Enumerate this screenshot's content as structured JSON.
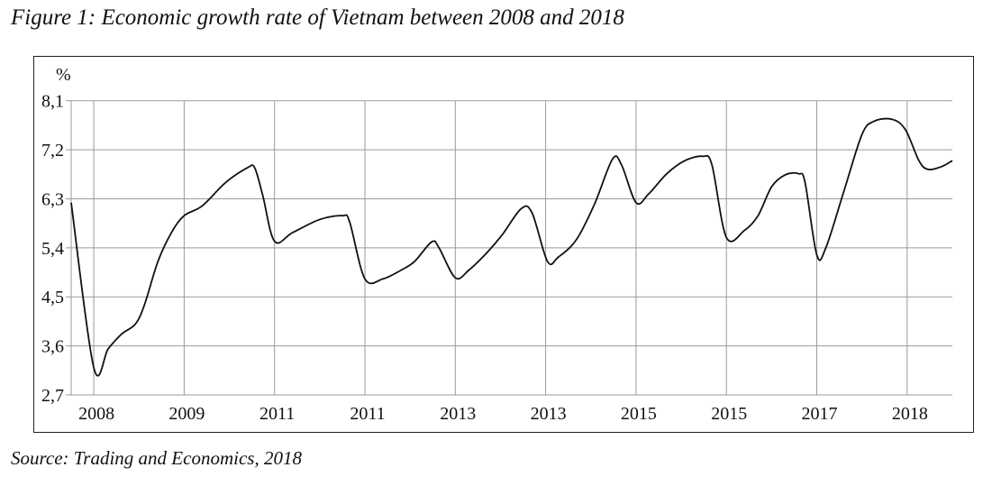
{
  "title": "Figure 1: Economic growth rate of Vietnam between 2008 and 2018",
  "source": "Source: Trading and Economics, 2018",
  "chart_data": {
    "type": "line",
    "title": "Figure 1: Economic growth rate of Vietnam between 2008 and 2018",
    "ylabel": "%",
    "xlabel": "",
    "x_tick_labels": [
      "2008",
      "2009",
      "2011",
      "2011",
      "2013",
      "2013",
      "2015",
      "2015",
      "2017",
      "2018"
    ],
    "x_tick_index": [
      0,
      1,
      2,
      3,
      4,
      5,
      6,
      7,
      8,
      9
    ],
    "xlim": [
      -0.25,
      9.5
    ],
    "y_ticks": [
      "2,7",
      "3,6",
      "4,5",
      "5,4",
      "6,3",
      "7,2",
      "8,1"
    ],
    "y_tick_values": [
      2.7,
      3.6,
      4.5,
      5.4,
      6.3,
      7.2,
      8.1
    ],
    "ylim": [
      2.7,
      8.1
    ],
    "grid": true,
    "line_color": "#111111",
    "grid_color": "#9a9a9a",
    "series": [
      {
        "x": [
          -0.25,
          0,
          0.16,
          0.31,
          0.46,
          0.56,
          0.71,
          0.86,
          1.0,
          1.2,
          1.46,
          1.7,
          1.78,
          1.87,
          2.0,
          2.2,
          2.5,
          2.75,
          2.83,
          3.0,
          3.2,
          3.4,
          3.55,
          3.74,
          3.82,
          4.0,
          4.15,
          4.35,
          4.52,
          4.73,
          4.85,
          5.02,
          5.14,
          5.34,
          5.54,
          5.74,
          5.84,
          6.0,
          6.14,
          6.34,
          6.54,
          6.74,
          6.84,
          7.0,
          7.2,
          7.35,
          7.5,
          7.65,
          7.8,
          7.87,
          8.0,
          8.1,
          8.3,
          8.5,
          8.63,
          8.83,
          8.98,
          9.13,
          9.23,
          9.38,
          9.5
        ],
        "y": [
          6.23,
          3.2,
          3.55,
          3.82,
          4.0,
          4.35,
          5.15,
          5.68,
          5.99,
          6.17,
          6.6,
          6.87,
          6.87,
          6.36,
          5.52,
          5.68,
          5.92,
          5.99,
          5.88,
          4.83,
          4.83,
          4.99,
          5.15,
          5.51,
          5.4,
          4.85,
          4.99,
          5.31,
          5.64,
          6.12,
          6.04,
          5.15,
          5.23,
          5.55,
          6.2,
          7.03,
          6.92,
          6.23,
          6.39,
          6.76,
          7.0,
          7.08,
          6.92,
          5.59,
          5.72,
          5.99,
          6.52,
          6.74,
          6.76,
          6.6,
          5.27,
          5.4,
          6.44,
          7.48,
          7.72,
          7.76,
          7.57,
          7.0,
          6.84,
          6.89,
          7.0
        ]
      }
    ]
  }
}
